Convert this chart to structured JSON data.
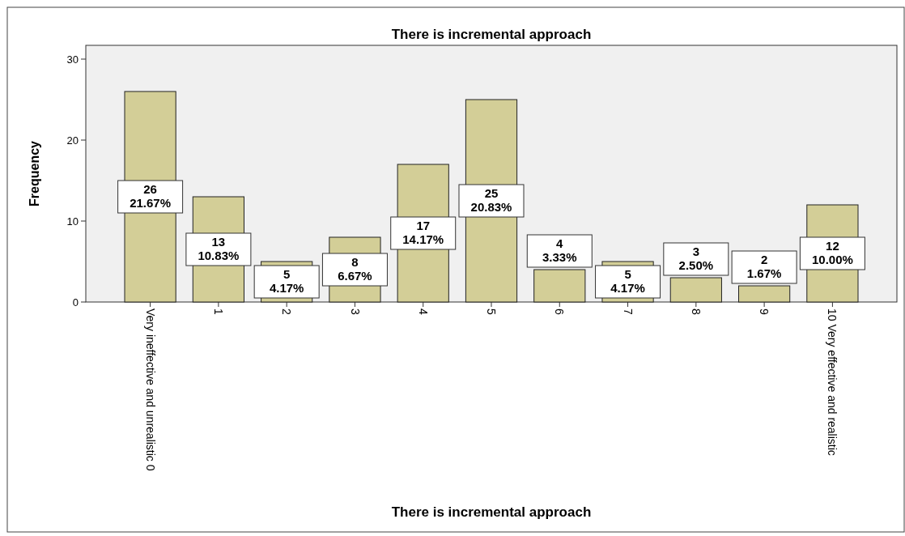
{
  "chart_data": {
    "type": "bar",
    "title": "There is incremental approach",
    "xlabel": "There is incremental approach",
    "ylabel": "Frequency",
    "categories": [
      "Very ineffective and unrealistic 0",
      "1",
      "2",
      "3",
      "4",
      "5",
      "6",
      "7",
      "8",
      "9",
      "10 Very effective and realistic"
    ],
    "values": [
      26,
      13,
      5,
      8,
      17,
      25,
      4,
      5,
      3,
      2,
      12
    ],
    "value_labels": [
      "26\n21.67%",
      "13\n10.83%",
      "5\n4.17%",
      "8\n6.67%",
      "17\n14.17%",
      "25\n20.83%",
      "4\n3.33%",
      "5\n4.17%",
      "3\n2.50%",
      "2\n1.67%",
      "12\n10.00%"
    ],
    "color": "#d3ce97",
    "ylim": [
      0,
      31.7
    ],
    "yticks": [
      0,
      10,
      20,
      30
    ],
    "grid": false
  }
}
